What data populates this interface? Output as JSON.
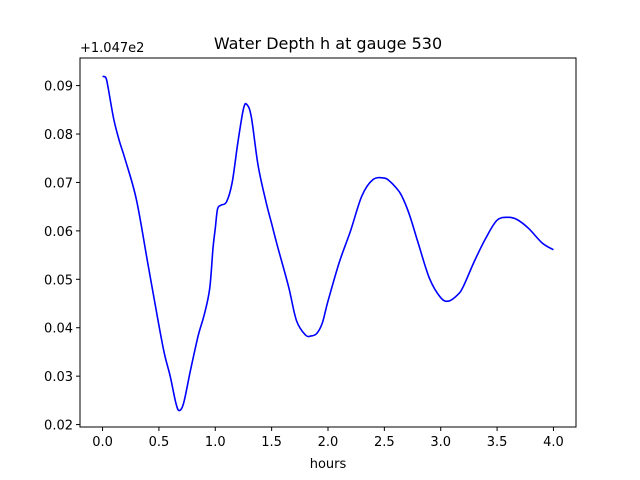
{
  "chart_data": {
    "type": "line",
    "title": "Water Depth h at gauge 530",
    "xlabel": "hours",
    "ylabel": "",
    "offset_label": "+1.047e2",
    "xlim": [
      -0.2,
      4.2
    ],
    "ylim": [
      0.0195,
      0.0957
    ],
    "xticks": [
      0.0,
      0.5,
      1.0,
      1.5,
      2.0,
      2.5,
      3.0,
      3.5,
      4.0
    ],
    "xtick_labels": [
      "0.0",
      "0.5",
      "1.0",
      "1.5",
      "2.0",
      "2.5",
      "3.0",
      "3.5",
      "4.0"
    ],
    "yticks": [
      0.02,
      0.03,
      0.04,
      0.05,
      0.06,
      0.07,
      0.08,
      0.09
    ],
    "ytick_labels": [
      "0.02",
      "0.03",
      "0.04",
      "0.05",
      "0.06",
      "0.07",
      "0.08",
      "0.09"
    ],
    "grid": false,
    "series": [
      {
        "color": "#0000ff",
        "x": [
          0.0,
          0.03,
          0.05,
          0.1,
          0.15,
          0.2,
          0.3,
          0.4,
          0.5,
          0.55,
          0.6,
          0.65,
          0.68,
          0.72,
          0.78,
          0.85,
          0.9,
          0.95,
          0.98,
          1.0,
          1.02,
          1.05,
          1.1,
          1.15,
          1.2,
          1.25,
          1.28,
          1.32,
          1.38,
          1.45,
          1.5,
          1.55,
          1.65,
          1.72,
          1.8,
          1.85,
          1.9,
          1.95,
          2.0,
          2.1,
          2.2,
          2.3,
          2.4,
          2.5,
          2.55,
          2.6,
          2.65,
          2.72,
          2.8,
          2.9,
          3.0,
          3.07,
          3.15,
          3.2,
          3.3,
          3.4,
          3.5,
          3.6,
          3.68,
          3.78,
          3.9,
          4.0
        ],
        "y": [
          0.0919,
          0.0916,
          0.0895,
          0.083,
          0.0785,
          0.0748,
          0.0665,
          0.0535,
          0.0405,
          0.0345,
          0.03,
          0.0245,
          0.0229,
          0.0245,
          0.0312,
          0.0385,
          0.0425,
          0.048,
          0.0565,
          0.0605,
          0.0645,
          0.0653,
          0.066,
          0.07,
          0.0782,
          0.0852,
          0.0861,
          0.0835,
          0.0735,
          0.066,
          0.0615,
          0.057,
          0.0485,
          0.0415,
          0.0385,
          0.0383,
          0.0388,
          0.041,
          0.0455,
          0.0535,
          0.06,
          0.0672,
          0.0706,
          0.0709,
          0.0702,
          0.069,
          0.0674,
          0.0635,
          0.0575,
          0.0502,
          0.0462,
          0.0455,
          0.0468,
          0.0485,
          0.0538,
          0.0585,
          0.0622,
          0.0628,
          0.0623,
          0.0605,
          0.0575,
          0.0561
        ]
      }
    ]
  }
}
